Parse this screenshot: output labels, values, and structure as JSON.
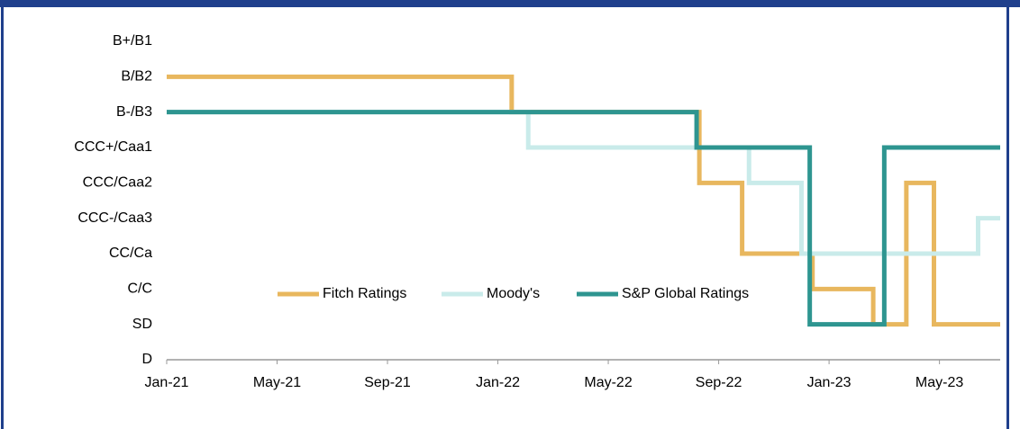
{
  "chart_data": {
    "type": "line",
    "drawstyle": "steps-post",
    "xlim": [
      0,
      30.2
    ],
    "ylim": [
      0,
      9
    ],
    "xticks": [
      {
        "value": 0,
        "label": "Jan-21"
      },
      {
        "value": 4,
        "label": "May-21"
      },
      {
        "value": 8,
        "label": "Sep-21"
      },
      {
        "value": 12,
        "label": "Jan-22"
      },
      {
        "value": 16,
        "label": "May-22"
      },
      {
        "value": 20,
        "label": "Sep-22"
      },
      {
        "value": 24,
        "label": "Jan-23"
      },
      {
        "value": 28,
        "label": "May-23"
      }
    ],
    "yticks": [
      {
        "value": 0,
        "label": "D"
      },
      {
        "value": 1,
        "label": "SD"
      },
      {
        "value": 2,
        "label": "C/C"
      },
      {
        "value": 3,
        "label": "CC/Ca"
      },
      {
        "value": 4,
        "label": "CCC-/Caa3"
      },
      {
        "value": 5,
        "label": "CCC/Caa2"
      },
      {
        "value": 6,
        "label": "CCC+/Caa1"
      },
      {
        "value": 7,
        "label": "B-/B3"
      },
      {
        "value": 8,
        "label": "B/B2"
      },
      {
        "value": 9,
        "label": "B+/B1"
      }
    ],
    "grid": false,
    "legend": "center",
    "series": [
      {
        "name": "Fitch Ratings",
        "color": "#E8B75E",
        "x": [
          0,
          12.5,
          19.3,
          20.85,
          23.4,
          25.6,
          26.8,
          27.8,
          30.2
        ],
        "values": [
          8,
          7,
          5,
          3,
          2,
          1,
          5,
          1,
          1
        ]
      },
      {
        "name": "Moody's",
        "color": "#C9EBEA",
        "x": [
          0,
          13.1,
          21.1,
          23.0,
          29.4,
          30.2
        ],
        "values": [
          7,
          6,
          5,
          3,
          4,
          4
        ]
      },
      {
        "name": "S&P Global Ratings",
        "color": "#2E9590",
        "x": [
          0,
          19.2,
          23.3,
          26.0,
          30.2
        ],
        "values": [
          7,
          6,
          1,
          6,
          6
        ]
      }
    ]
  }
}
